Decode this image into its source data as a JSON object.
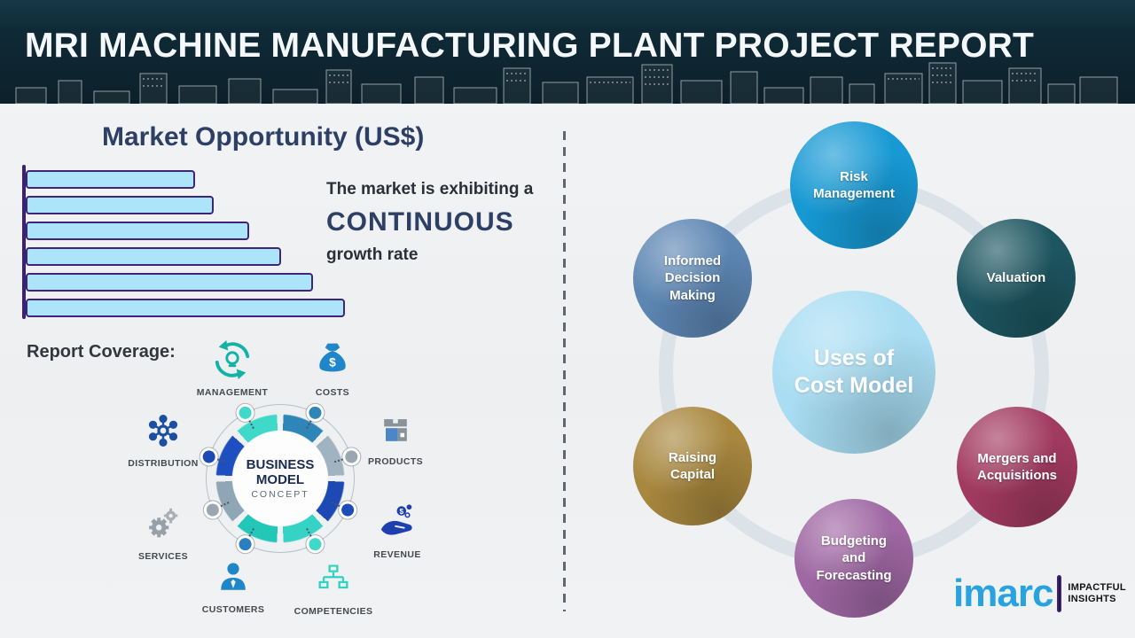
{
  "header": {
    "title": "MRI MACHINE MANUFACTURING PLANT PROJECT REPORT"
  },
  "market_opportunity": {
    "title": "Market Opportunity (US$)",
    "statement": {
      "prefix": "The market is exhibiting a",
      "highlight": "CONTINUOUS",
      "suffix": "growth rate"
    }
  },
  "chart_data": {
    "type": "bar",
    "orientation": "horizontal",
    "title": "Market Opportunity (US$)",
    "categories": [
      "bar-1",
      "bar-2",
      "bar-3",
      "bar-4",
      "bar-5",
      "bar-6"
    ],
    "values": [
      53,
      59,
      70,
      80,
      90,
      100
    ],
    "value_scale": "relative-percent (chart has no axis tick labels)",
    "bar_fill": "#ace4f9",
    "bar_border": "#3f2478",
    "axis_color": "#3a2173",
    "legend": "none",
    "grid": "off"
  },
  "report_coverage": {
    "label": "Report Coverage:",
    "center": {
      "line1": "BUSINESS",
      "line2": "MODEL",
      "line3": "CONCEPT"
    },
    "items": [
      "MANAGEMENT",
      "COSTS",
      "DISTRIBUTION",
      "PRODUCTS",
      "SERVICES",
      "REVENUE",
      "CUSTOMERS",
      "COMPETENCIES"
    ]
  },
  "cost_model": {
    "center": {
      "line1": "Uses of",
      "line2": "Cost Model",
      "color": "#a8ddf3"
    },
    "nodes": [
      {
        "label": "Risk Management",
        "color": "#1799d4"
      },
      {
        "label": "Valuation",
        "color": "#1d5560"
      },
      {
        "label": "Mergers and Acquisitions",
        "color": "#a23a60"
      },
      {
        "label": "Budgeting and Forecasting",
        "color": "#9f67a3"
      },
      {
        "label": "Raising Capital",
        "color": "#a8873e"
      },
      {
        "label": "Informed Decision Making",
        "color": "#5d86b3"
      }
    ]
  },
  "logo": {
    "brand": "imarc",
    "tagline": [
      "IMPACTFUL",
      "INSIGHTS"
    ]
  }
}
